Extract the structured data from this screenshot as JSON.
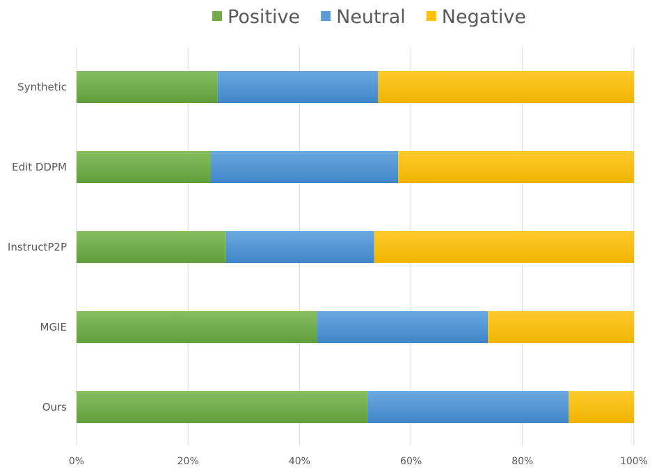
{
  "chart_data": {
    "type": "bar",
    "orientation": "horizontal",
    "stacked": "percent",
    "title": "",
    "xlabel": "",
    "ylabel": "",
    "xlim": [
      0,
      100
    ],
    "grid": true,
    "legend_position": "top-center",
    "categories": [
      "Synthetic",
      "Edit DDPM",
      "InstructP2P",
      "MGIE",
      "Ours"
    ],
    "series": [
      {
        "name": "Positive",
        "color": "#70ad47",
        "values": [
          25.3,
          24.1,
          26.8,
          43.1,
          52.2
        ]
      },
      {
        "name": "Neutral",
        "color": "#5b9bd5",
        "values": [
          28.8,
          33.6,
          26.6,
          30.7,
          36.1
        ]
      },
      {
        "name": "Negative",
        "color": "#ffc000",
        "values": [
          45.9,
          42.3,
          46.6,
          26.2,
          11.7
        ]
      }
    ],
    "ticks": [
      "0%",
      "20%",
      "40%",
      "60%",
      "80%",
      "100%"
    ]
  }
}
